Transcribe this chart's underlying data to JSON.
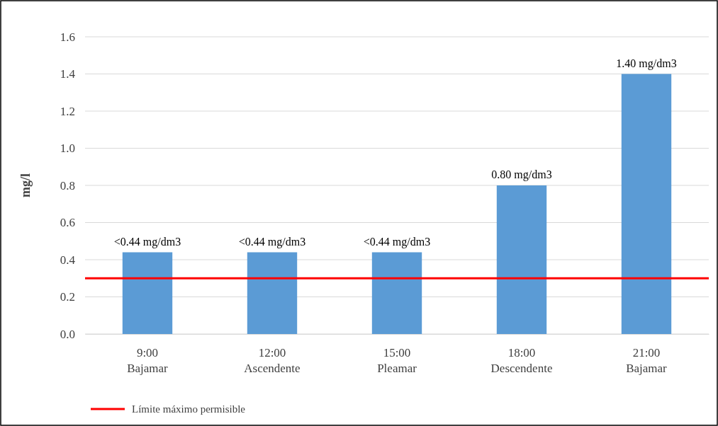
{
  "chart_data": {
    "type": "bar",
    "ylabel": "mg/l",
    "categories": [
      "9:00\nBajamar",
      "12:00\nAscendente",
      "15:00\nPleamar",
      "18:00\nDescendente",
      "21:00\nBajamar"
    ],
    "values": [
      0.44,
      0.44,
      0.44,
      0.8,
      1.4
    ],
    "color": "#5b9bd5",
    "value_labels": [
      "<0.44 mg/dm3",
      "<0.44 mg/dm3",
      "<0.44 mg/dm3",
      "0.80 mg/dm3",
      "1.40 mg/dm3"
    ],
    "ylim": [
      0,
      1.6
    ],
    "yticks": [
      {
        "value": 0,
        "label": "0.0"
      },
      0.2,
      0.4,
      0.6,
      0.8,
      {
        "value": 1,
        "label": "1.0"
      },
      1.2,
      1.4,
      1.6
    ],
    "grid": "y",
    "ref_lines": [
      {
        "axis": "y",
        "value": 0.3,
        "label": "Límite máximo permisible",
        "color": "#ff0000"
      }
    ],
    "legend": "bottom"
  }
}
